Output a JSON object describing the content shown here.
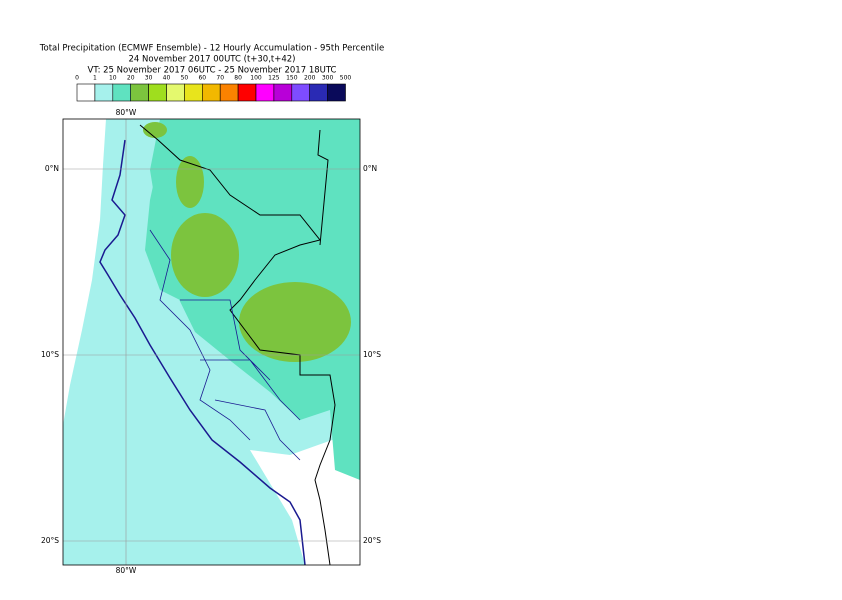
{
  "header": {
    "title": "Total Precipitation (ECMWF Ensemble) - 12 Hourly Accumulation - 95th Percentile",
    "run": "24 November 2017 00UTC (t+30,t+42)",
    "valid": "VT: 25 November 2017 06UTC - 25 November 2017 18UTC"
  },
  "legend": {
    "labels": [
      "0",
      "1",
      "10",
      "20",
      "30",
      "40",
      "50",
      "60",
      "70",
      "80",
      "100",
      "125",
      "150",
      "200",
      "300",
      "500"
    ],
    "colors": [
      "#ffffff",
      "#a6f1ec",
      "#5fe2c0",
      "#7cc43e",
      "#9fde1e",
      "#e4f96e",
      "#e8e41c",
      "#f2b800",
      "#fb8200",
      "#ff0000",
      "#ff00ff",
      "#b800d8",
      "#7e4cff",
      "#2a2ab4",
      "#0a0a5a"
    ]
  },
  "map": {
    "lon_label": "80°W",
    "lat_labels": [
      "0°N",
      "10°S",
      "20°S"
    ]
  }
}
